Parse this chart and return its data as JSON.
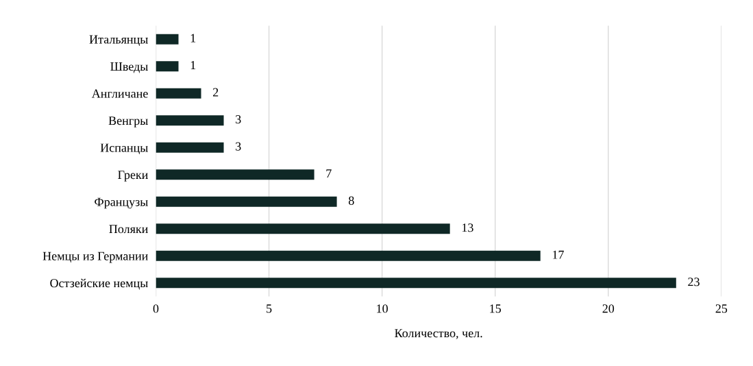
{
  "chart_data": {
    "type": "bar",
    "orientation": "horizontal",
    "xlabel": "Количество, чел.",
    "categories": [
      "Итальянцы",
      "Шведы",
      "Англичане",
      "Венгры",
      "Испанцы",
      "Греки",
      "Французы",
      "Поляки",
      "Немцы из Германии",
      "Остзейские немцы"
    ],
    "values": [
      1,
      1,
      2,
      3,
      3,
      7,
      8,
      13,
      17,
      23
    ],
    "color": "#0f2826",
    "xlim": [
      0,
      25
    ],
    "xticks": [
      0,
      5,
      10,
      15,
      20,
      25
    ],
    "grid": "x",
    "data_labels": true
  }
}
